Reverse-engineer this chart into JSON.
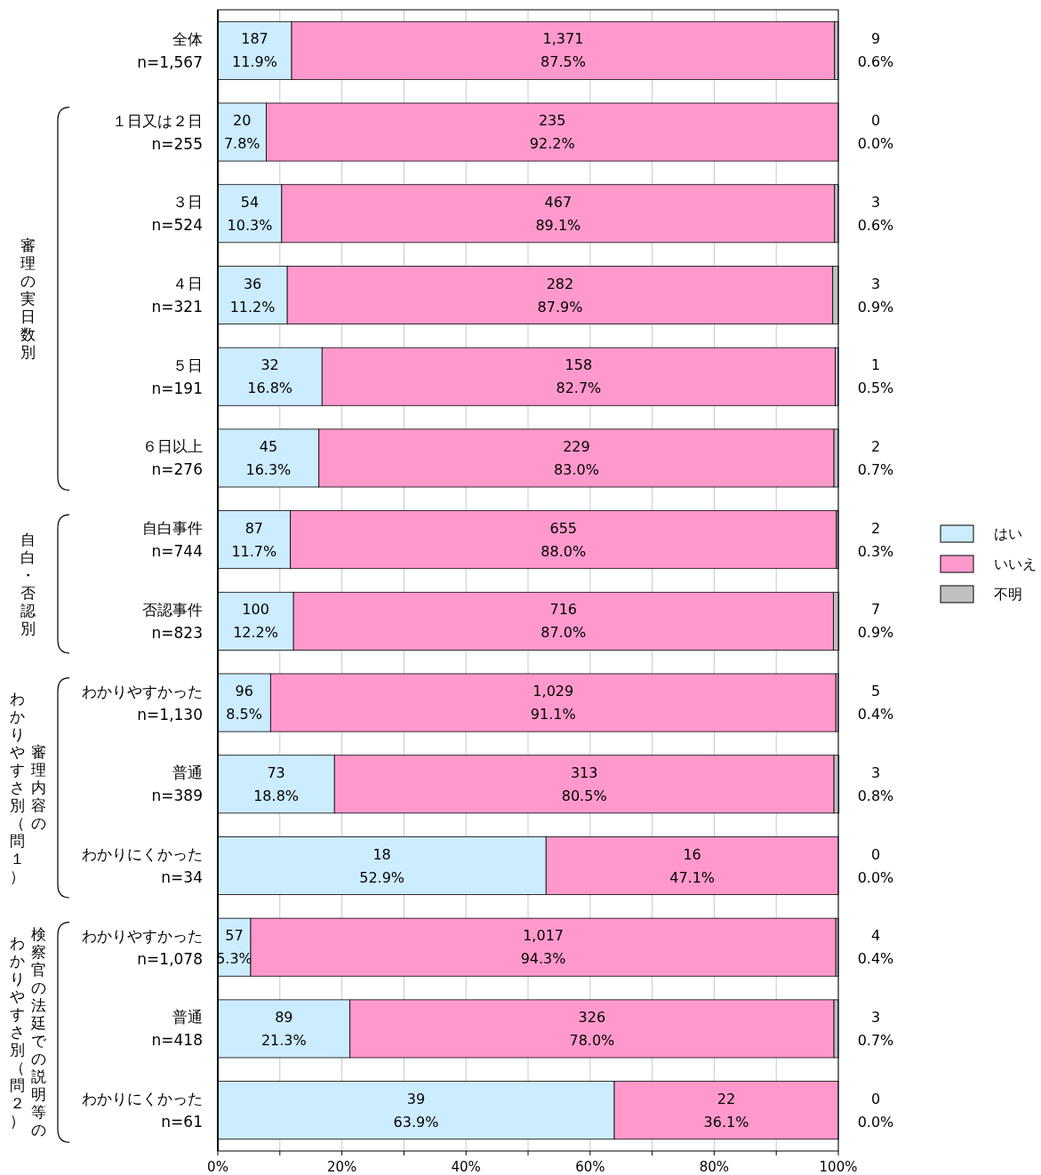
{
  "chart_data": {
    "type": "bar",
    "orientation": "horizontal",
    "stacked": true,
    "categories": [
      "全体\nn=1,567",
      "１日又は２日\nn=255",
      "３日\nn=524",
      "４日\nn=321",
      "５日\nn=191",
      "６日以上\nn=276",
      "自白事件\nn=744",
      "否認事件\nn=823",
      "わかりやすかった\nn=1,130",
      "普通\nn=389",
      "わかりにくかった\nn=34",
      "わかりやすかった\nn=1,078",
      "普通\nn=418",
      "わかりにくかった\nn=61"
    ],
    "series": [
      {
        "name": "はい",
        "color": "#ccecff",
        "values": [
          11.9,
          7.8,
          10.3,
          11.2,
          16.8,
          16.3,
          11.7,
          12.2,
          8.5,
          18.8,
          52.9,
          5.3,
          21.3,
          63.9
        ],
        "value_labels": [
          "187\n11.9%",
          "20\n7.8%",
          "54\n10.3%",
          "36\n11.2%",
          "32\n16.8%",
          "45\n16.3%",
          "87\n11.7%",
          "100\n12.2%",
          "96\n8.5%",
          "73\n18.8%",
          "18\n52.9%",
          "57\n5.3%",
          "89\n21.3%",
          "39\n63.9%"
        ]
      },
      {
        "name": "いいえ",
        "color": "#ff99cc",
        "values": [
          87.5,
          92.2,
          89.1,
          87.9,
          82.7,
          83.0,
          88.0,
          87.0,
          91.1,
          80.5,
          47.1,
          94.3,
          78.0,
          36.1
        ],
        "value_labels": [
          "1,371\n87.5%",
          "235\n92.2%",
          "467\n89.1%",
          "282\n87.9%",
          "158\n82.7%",
          "229\n83.0%",
          "655\n88.0%",
          "716\n87.0%",
          "1,029\n91.1%",
          "313\n80.5%",
          "16\n47.1%",
          "1,017\n94.3%",
          "326\n78.0%",
          "22\n36.1%"
        ]
      },
      {
        "name": "不明",
        "color": "#c0c0c0",
        "values": [
          0.6,
          0.0,
          0.6,
          0.9,
          0.5,
          0.7,
          0.3,
          0.9,
          0.4,
          0.8,
          0.0,
          0.4,
          0.7,
          0.0
        ],
        "value_labels": [
          "9\n0.6%",
          "0\n0.0%",
          "3\n0.6%",
          "3\n0.9%",
          "1\n0.5%",
          "2\n0.7%",
          "2\n0.3%",
          "7\n0.9%",
          "5\n0.4%",
          "3\n0.8%",
          "0\n0.0%",
          "4\n0.4%",
          "3\n0.7%",
          "0\n0.0%"
        ]
      }
    ],
    "xlim": [
      0,
      100
    ],
    "xticks": [
      {
        "value": 0,
        "label": "0%"
      },
      {
        "value": 10,
        "label": null
      },
      {
        "value": 20,
        "label": "20%"
      },
      {
        "value": 30,
        "label": null
      },
      {
        "value": 40,
        "label": "40%"
      },
      {
        "value": 50,
        "label": null
      },
      {
        "value": 60,
        "label": "60%"
      },
      {
        "value": 70,
        "label": null
      },
      {
        "value": 80,
        "label": "80%"
      },
      {
        "value": 90,
        "label": null
      },
      {
        "value": 100,
        "label": "100%"
      }
    ],
    "grid": "x",
    "legend": "right",
    "annotations": [
      "審理の実日数別",
      "自白・否認別",
      "審理内容のわかりやすさ別（問１）",
      "検察官の法廷での説明等のわかりやすさ別（問２）"
    ]
  }
}
